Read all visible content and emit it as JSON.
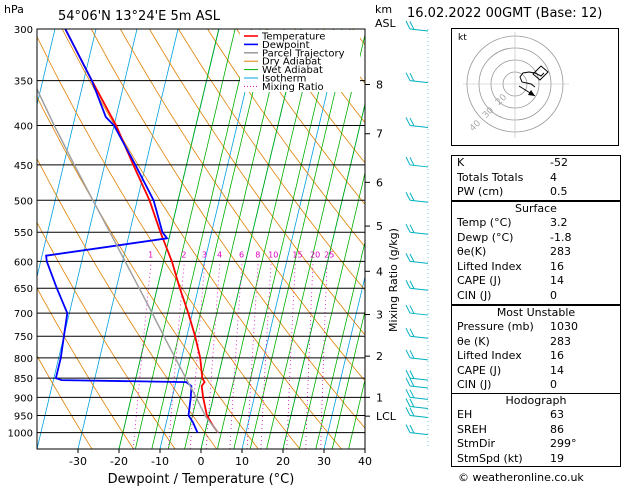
{
  "header": {
    "location": "54°06'N  13°24'E  5m  ASL",
    "date": "16.02.2022  00GMT  (Base: 12)",
    "hpa_label": "hPa",
    "km_label": "km",
    "asl_label": "ASL"
  },
  "chart_data": {
    "type": "skew-t log-p",
    "xlabel": "Dewpoint / Temperature (°C)",
    "right_axis_label": "Mixing Ratio (g/kg)",
    "pressure_levels": [
      300,
      350,
      400,
      450,
      500,
      550,
      600,
      650,
      700,
      750,
      800,
      850,
      900,
      950,
      1000
    ],
    "temperature_ticks": [
      -30,
      -20,
      -10,
      0,
      10,
      20,
      30,
      40
    ],
    "xlim": [
      -40,
      40
    ],
    "plim": [
      1050,
      300
    ],
    "height_km_ticks": [
      {
        "label": "8",
        "p": 354
      },
      {
        "label": "7",
        "p": 410
      },
      {
        "label": "6",
        "p": 474
      },
      {
        "label": "5",
        "p": 540
      },
      {
        "label": "4",
        "p": 618
      },
      {
        "label": "3",
        "p": 703
      },
      {
        "label": "2",
        "p": 796
      },
      {
        "label": "1",
        "p": 900
      },
      {
        "label": "LCL",
        "p": 952
      }
    ],
    "mixing_ratio_labels": [
      "1",
      "2",
      "3",
      "4",
      "6",
      "8",
      "10",
      "15",
      "20",
      "25"
    ],
    "mixing_ratio_values": [
      1,
      2,
      3,
      4,
      6,
      8,
      10,
      15,
      20,
      25
    ],
    "legend": [
      "Temperature",
      "Dewpoint",
      "Parcel Trajectory",
      "Dry Adiabat",
      "Wet Adiabat",
      "Isotherm",
      "Mixing Ratio"
    ],
    "series": [
      {
        "name": "Temperature",
        "color": "#ff0000",
        "points": [
          [
            1000,
            3.2
          ],
          [
            980,
            1.6
          ],
          [
            950,
            -0.5
          ],
          [
            900,
            -2.5
          ],
          [
            870,
            -3.5
          ],
          [
            860,
            -3.0
          ],
          [
            850,
            -3.8
          ],
          [
            800,
            -5.5
          ],
          [
            750,
            -8.0
          ],
          [
            700,
            -11.0
          ],
          [
            650,
            -14.5
          ],
          [
            600,
            -18.0
          ],
          [
            550,
            -22.5
          ],
          [
            500,
            -27.0
          ],
          [
            450,
            -33.0
          ],
          [
            400,
            -39.5
          ],
          [
            350,
            -48.0
          ],
          [
            300,
            -57.5
          ]
        ]
      },
      {
        "name": "Dewpoint",
        "color": "#0000ff",
        "points": [
          [
            1000,
            -1.8
          ],
          [
            970,
            -3.5
          ],
          [
            950,
            -5.0
          ],
          [
            900,
            -5.5
          ],
          [
            870,
            -6.0
          ],
          [
            860,
            -7.5
          ],
          [
            855,
            -38.0
          ],
          [
            850,
            -39.5
          ],
          [
            800,
            -39.5
          ],
          [
            750,
            -40.0
          ],
          [
            700,
            -40.5
          ],
          [
            650,
            -44.5
          ],
          [
            600,
            -48.5
          ],
          [
            590,
            -49.0
          ],
          [
            560,
            -20.5
          ],
          [
            550,
            -22.0
          ],
          [
            500,
            -26.0
          ],
          [
            450,
            -32.5
          ],
          [
            400,
            -40.0
          ],
          [
            390,
            -42.5
          ],
          [
            350,
            -48.0
          ],
          [
            300,
            -57.5
          ]
        ]
      },
      {
        "name": "Parcel Trajectory",
        "color": "#a0a0a0",
        "points": [
          [
            1000,
            3.2
          ],
          [
            952,
            -0.8
          ],
          [
            900,
            -4.2
          ],
          [
            850,
            -7.8
          ],
          [
            800,
            -11.6
          ],
          [
            750,
            -15.6
          ],
          [
            700,
            -19.8
          ],
          [
            650,
            -24.4
          ],
          [
            600,
            -29.4
          ],
          [
            550,
            -34.8
          ],
          [
            500,
            -40.8
          ],
          [
            450,
            -47.4
          ],
          [
            400,
            -54.6
          ],
          [
            350,
            -62.4
          ],
          [
            300,
            -70.5
          ]
        ]
      }
    ],
    "wind_barb_pressures": [
      300,
      350,
      400,
      450,
      500,
      550,
      600,
      650,
      700,
      750,
      800,
      850,
      870,
      900,
      925,
      950,
      1000
    ]
  },
  "hodograph": {
    "unit_label": "kt",
    "ring_labels": [
      "40",
      "30",
      "20"
    ]
  },
  "indices": {
    "k_label": "K",
    "k_value": "-52",
    "tt_label": "Totals Totals",
    "tt_value": "4",
    "pw_label": "PW (cm)",
    "pw_value": "0.5"
  },
  "surface": {
    "title": "Surface",
    "rows": [
      {
        "label": "Temp (°C)",
        "value": "3.2"
      },
      {
        "label": "Dewp (°C)",
        "value": "-1.8"
      },
      {
        "label": "θe(K)",
        "value": "283"
      },
      {
        "label": "Lifted Index",
        "value": "16"
      },
      {
        "label": "CAPE (J)",
        "value": "14"
      },
      {
        "label": "CIN (J)",
        "value": "0"
      }
    ]
  },
  "most_unstable": {
    "title": "Most Unstable",
    "rows": [
      {
        "label": "Pressure (mb)",
        "value": "1030"
      },
      {
        "label": "θe (K)",
        "value": "283"
      },
      {
        "label": "Lifted Index",
        "value": "16"
      },
      {
        "label": "CAPE (J)",
        "value": "14"
      },
      {
        "label": "CIN (J)",
        "value": "0"
      }
    ]
  },
  "hodograph_table": {
    "title": "Hodograph",
    "rows": [
      {
        "label": "EH",
        "value": "63"
      },
      {
        "label": "SREH",
        "value": "86"
      },
      {
        "label": "StmDir",
        "value": "299°"
      },
      {
        "label": "StmSpd (kt)",
        "value": "19"
      }
    ]
  },
  "footer": {
    "credit": "© weatheronline.co.uk"
  },
  "colors": {
    "temperature": "#ff0000",
    "dewpoint": "#0000ff",
    "parcel": "#a0a0a0",
    "dry_adiabat": "#e08000",
    "wet_adiabat": "#00b000",
    "isotherm": "#00a0e0",
    "mixing_ratio": "#e000c0",
    "wind_barb": "#00b0c0"
  }
}
